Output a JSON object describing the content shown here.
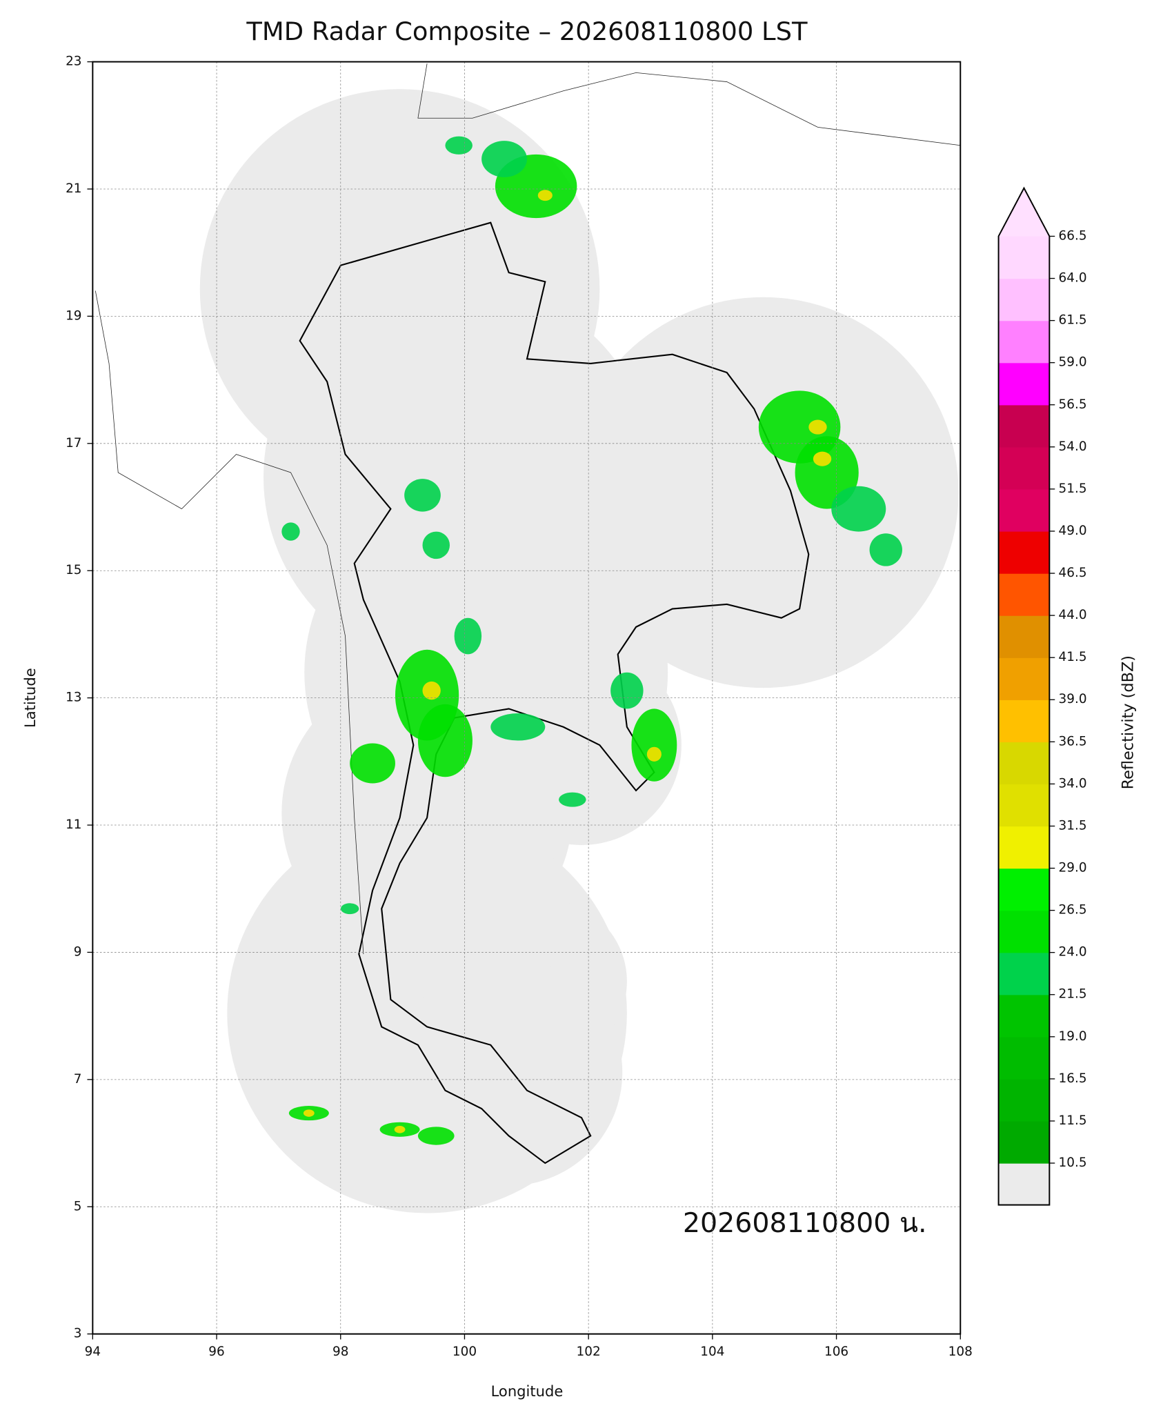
{
  "chart_data": {
    "type": "map",
    "title": "TMD Radar Composite – 202608110800 LST",
    "x_label": "Longitude",
    "y_label": "Latitude",
    "xlim": [
      94,
      108
    ],
    "ylim": [
      3,
      23
    ],
    "xticks": [
      94,
      96,
      98,
      100,
      102,
      104,
      106,
      108
    ],
    "yticks": [
      3,
      5,
      7,
      9,
      11,
      13,
      15,
      17,
      19,
      21,
      23
    ],
    "grid": true,
    "annotation": "202608110800 น.",
    "colorbar": {
      "label": "Reflectivity (dBZ)",
      "ticks": [
        10.5,
        11.5,
        16.5,
        {
          "value": 19,
          "label": "19.0"
        },
        21.5,
        {
          "value": 24,
          "label": "24.0"
        },
        26.5,
        {
          "value": 29,
          "label": "29.0"
        },
        31.5,
        {
          "value": 34,
          "label": "34.0"
        },
        36.5,
        {
          "value": 39,
          "label": "39.0"
        },
        41.5,
        {
          "value": 44,
          "label": "44.0"
        },
        46.5,
        {
          "value": 49,
          "label": "49.0"
        },
        51.5,
        {
          "value": 54,
          "label": "54.0"
        },
        56.5,
        {
          "value": 59,
          "label": "59.0"
        },
        61.5,
        {
          "value": 64,
          "label": "64.0"
        },
        66.5
      ],
      "colors": [
        "#00aa00",
        "#00b400",
        "#00bc00",
        "#00c400",
        "#00d24b",
        "#00e000",
        "#00f000",
        "#f0f000",
        "#e0e000",
        "#d8d800",
        "#ffc000",
        "#f0a000",
        "#e09000",
        "#ff5500",
        "#ee0000",
        "#e00060",
        "#d40055",
        "#c80050",
        "#ff00ff",
        "#ff80ff",
        "#ffc0ff",
        "#ffd8ff"
      ],
      "over_color": "#ffe0ff",
      "under_color": "#ebebeb"
    }
  }
}
